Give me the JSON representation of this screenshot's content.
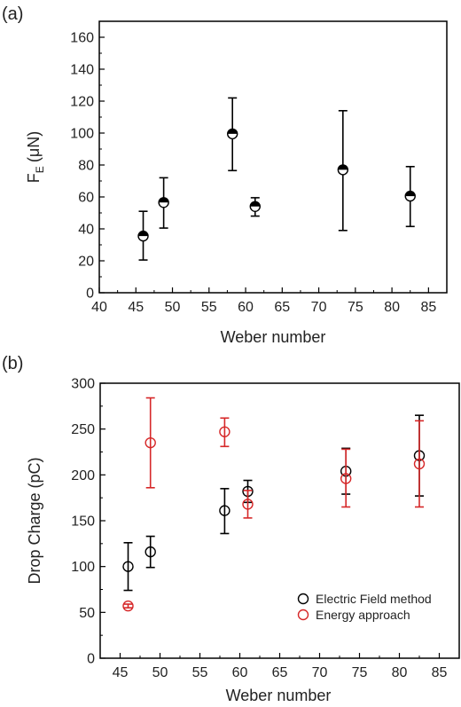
{
  "chart_data": [
    {
      "panel": "(a)",
      "type": "scatter",
      "xlabel": "Weber number",
      "ylabel_main": "F",
      "ylabel_sub": "E",
      "ylabel_unit": "(μN)",
      "xlim": [
        40,
        87.5
      ],
      "ylim": [
        0,
        170
      ],
      "xticks": [
        40,
        45,
        50,
        55,
        60,
        65,
        70,
        75,
        80,
        85
      ],
      "yticks": [
        0,
        20,
        40,
        60,
        80,
        100,
        120,
        140,
        160
      ],
      "marker": "half-filled-circle",
      "color": "#000000",
      "series": [
        {
          "points": [
            {
              "x": 46.0,
              "y": 35.5,
              "err_low": 20.5,
              "err_high": 51.0
            },
            {
              "x": 48.8,
              "y": 56.5,
              "err_low": 40.5,
              "err_high": 72.0
            },
            {
              "x": 58.2,
              "y": 99.5,
              "err_low": 76.5,
              "err_high": 122.0
            },
            {
              "x": 61.3,
              "y": 54.0,
              "err_low": 48.0,
              "err_high": 59.5
            },
            {
              "x": 73.3,
              "y": 77.0,
              "err_low": 39.0,
              "err_high": 114.0
            },
            {
              "x": 82.5,
              "y": 60.5,
              "err_low": 41.5,
              "err_high": 79.0
            }
          ]
        }
      ]
    },
    {
      "panel": "(b)",
      "type": "scatter",
      "xlabel": "Weber number",
      "ylabel": "Drop Charge (pC)",
      "xlim": [
        42.5,
        87.5
      ],
      "ylim": [
        0,
        300
      ],
      "xticks": [
        45,
        50,
        55,
        60,
        65,
        70,
        75,
        80,
        85
      ],
      "yticks": [
        0,
        50,
        100,
        150,
        200,
        250,
        300
      ],
      "legend_position": "bottom-right",
      "series": [
        {
          "name": "Electric Field method",
          "color": "#000000",
          "marker": "open-circle",
          "points": [
            {
              "x": 46.0,
              "y": 100,
              "err_low": 74,
              "err_high": 126
            },
            {
              "x": 48.8,
              "y": 116,
              "err_low": 99,
              "err_high": 133
            },
            {
              "x": 58.1,
              "y": 161,
              "err_low": 136,
              "err_high": 185
            },
            {
              "x": 61.0,
              "y": 182,
              "err_low": 170,
              "err_high": 194
            },
            {
              "x": 73.3,
              "y": 204,
              "err_low": 179,
              "err_high": 229
            },
            {
              "x": 82.5,
              "y": 221,
              "err_low": 177,
              "err_high": 265
            }
          ]
        },
        {
          "name": "Energy approach",
          "color": "#d62728",
          "marker": "open-circle",
          "points": [
            {
              "x": 46.0,
              "y": 57,
              "err_low": 55,
              "err_high": 59
            },
            {
              "x": 48.8,
              "y": 235,
              "err_low": 186,
              "err_high": 284
            },
            {
              "x": 58.1,
              "y": 247,
              "err_low": 231,
              "err_high": 262
            },
            {
              "x": 61.0,
              "y": 168,
              "err_low": 153,
              "err_high": 183
            },
            {
              "x": 73.3,
              "y": 196,
              "err_low": 165,
              "err_high": 228
            },
            {
              "x": 82.5,
              "y": 212,
              "err_low": 165,
              "err_high": 259
            }
          ]
        }
      ]
    }
  ]
}
